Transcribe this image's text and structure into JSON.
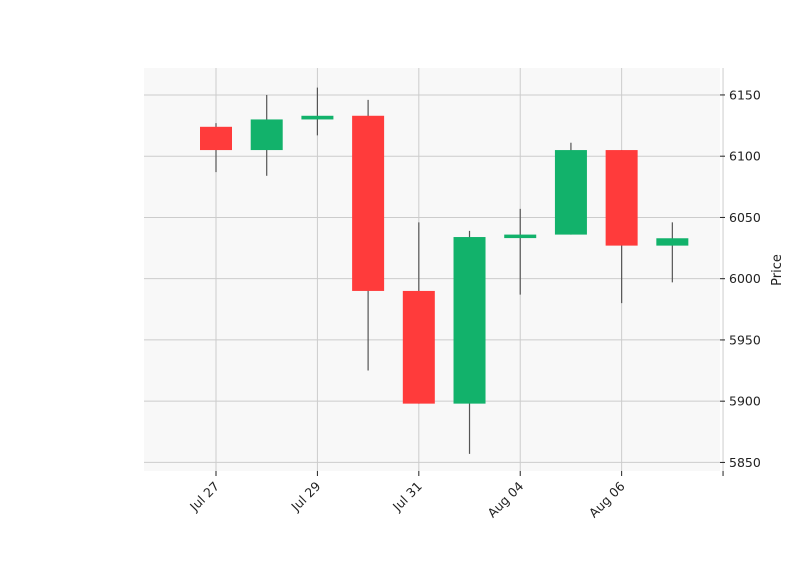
{
  "chart_data": {
    "type": "candlestick",
    "title": "",
    "xlabel": "",
    "ylabel": "Price",
    "ylim": [
      5843,
      6172
    ],
    "y_ticks": [
      5850,
      5900,
      5950,
      6000,
      6050,
      6100,
      6150
    ],
    "x_tick_labels": [
      "Jul 27",
      "Jul 29",
      "Jul 31",
      "Aug 04",
      "Aug 06",
      ""
    ],
    "x_tick_positions": [
      0,
      2,
      4,
      6,
      8,
      10
    ],
    "x_range": [
      -1.42,
      9.94
    ],
    "grid": true,
    "y_axis_side": "right",
    "colors": {
      "up": "#12b26b",
      "down": "#ff3b3b",
      "wick": "#555555",
      "plot_background": "#f8f8f8",
      "grid": "#cccccc"
    },
    "candles": [
      {
        "index": 0,
        "open": 6124,
        "high": 6127,
        "low": 6087,
        "close": 6105
      },
      {
        "index": 1,
        "open": 6105,
        "high": 6150,
        "low": 6084,
        "close": 6130
      },
      {
        "index": 2,
        "open": 6130,
        "high": 6156,
        "low": 6117,
        "close": 6133
      },
      {
        "index": 3,
        "open": 6133,
        "high": 6146,
        "low": 5925,
        "close": 5990
      },
      {
        "index": 4,
        "open": 5990,
        "high": 6046,
        "low": 5898,
        "close": 5898
      },
      {
        "index": 5,
        "open": 5898,
        "high": 6039,
        "low": 5857,
        "close": 6034
      },
      {
        "index": 6,
        "open": 6034,
        "high": 6057,
        "low": 5987,
        "close": 6036
      },
      {
        "index": 7,
        "open": 6036,
        "high": 6111,
        "low": 6036,
        "close": 6105
      },
      {
        "index": 8,
        "open": 6105,
        "high": 6105,
        "low": 5980,
        "close": 6027
      },
      {
        "index": 9,
        "open": 6027,
        "high": 6046,
        "low": 5997,
        "close": 6033
      }
    ]
  }
}
